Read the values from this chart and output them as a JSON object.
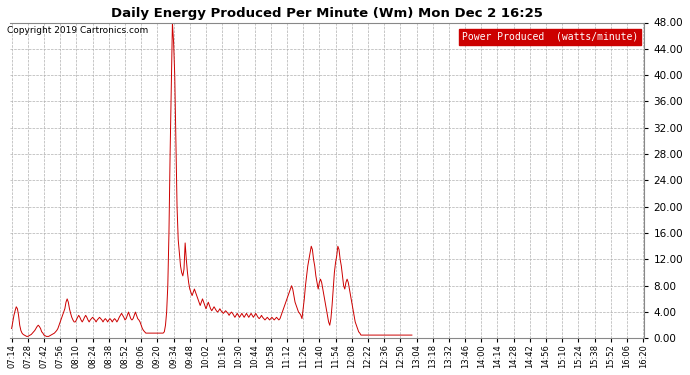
{
  "title": "Daily Energy Produced Per Minute (Wm) Mon Dec 2 16:25",
  "copyright": "Copyright 2019 Cartronics.com",
  "legend_label": "Power Produced  (watts/minute)",
  "legend_bg": "#cc0000",
  "legend_fg": "#ffffff",
  "line_color": "#cc0000",
  "bg_color": "#ffffff",
  "grid_color": "#bbbbbb",
  "ylim": [
    0.0,
    48.0
  ],
  "yticks": [
    0.0,
    4.0,
    8.0,
    12.0,
    16.0,
    20.0,
    24.0,
    28.0,
    32.0,
    36.0,
    40.0,
    44.0,
    48.0
  ],
  "xtick_labels": [
    "07:14",
    "07:28",
    "07:42",
    "07:56",
    "08:10",
    "08:24",
    "08:38",
    "08:52",
    "09:06",
    "09:20",
    "09:34",
    "09:48",
    "10:02",
    "10:16",
    "10:30",
    "10:44",
    "10:58",
    "11:12",
    "11:26",
    "11:40",
    "11:54",
    "12:08",
    "12:22",
    "12:36",
    "12:50",
    "13:04",
    "13:18",
    "13:32",
    "13:46",
    "14:00",
    "14:14",
    "14:28",
    "14:42",
    "14:56",
    "15:10",
    "15:24",
    "15:38",
    "15:52",
    "16:06",
    "16:20"
  ],
  "time_series": [
    [
      434,
      1.5
    ],
    [
      435,
      2.5
    ],
    [
      436,
      3.5
    ],
    [
      437,
      4.2
    ],
    [
      438,
      4.8
    ],
    [
      439,
      4.5
    ],
    [
      440,
      3.5
    ],
    [
      441,
      2.0
    ],
    [
      442,
      1.2
    ],
    [
      443,
      0.8
    ],
    [
      444,
      0.6
    ],
    [
      445,
      0.5
    ],
    [
      446,
      0.4
    ],
    [
      447,
      0.3
    ],
    [
      448,
      0.3
    ],
    [
      449,
      0.4
    ],
    [
      450,
      0.5
    ],
    [
      451,
      0.6
    ],
    [
      452,
      0.8
    ],
    [
      453,
      1.0
    ],
    [
      454,
      1.2
    ],
    [
      455,
      1.5
    ],
    [
      456,
      1.8
    ],
    [
      457,
      2.0
    ],
    [
      458,
      1.8
    ],
    [
      459,
      1.5
    ],
    [
      460,
      1.0
    ],
    [
      461,
      0.8
    ],
    [
      462,
      0.5
    ],
    [
      463,
      0.4
    ],
    [
      464,
      0.3
    ],
    [
      465,
      0.3
    ],
    [
      466,
      0.3
    ],
    [
      467,
      0.4
    ],
    [
      468,
      0.5
    ],
    [
      469,
      0.6
    ],
    [
      470,
      0.7
    ],
    [
      471,
      0.8
    ],
    [
      472,
      1.0
    ],
    [
      473,
      1.2
    ],
    [
      474,
      1.5
    ],
    [
      475,
      2.0
    ],
    [
      476,
      2.5
    ],
    [
      477,
      3.0
    ],
    [
      478,
      3.5
    ],
    [
      479,
      4.0
    ],
    [
      480,
      4.5
    ],
    [
      481,
      5.5
    ],
    [
      482,
      6.0
    ],
    [
      483,
      5.5
    ],
    [
      484,
      4.5
    ],
    [
      485,
      3.8
    ],
    [
      486,
      3.2
    ],
    [
      487,
      2.8
    ],
    [
      488,
      2.5
    ],
    [
      489,
      2.5
    ],
    [
      490,
      2.8
    ],
    [
      491,
      3.2
    ],
    [
      492,
      3.5
    ],
    [
      493,
      3.2
    ],
    [
      494,
      2.8
    ],
    [
      495,
      2.5
    ],
    [
      496,
      2.8
    ],
    [
      497,
      3.2
    ],
    [
      498,
      3.5
    ],
    [
      499,
      3.2
    ],
    [
      500,
      2.8
    ],
    [
      501,
      2.5
    ],
    [
      502,
      2.8
    ],
    [
      503,
      3.0
    ],
    [
      504,
      3.2
    ],
    [
      505,
      3.0
    ],
    [
      506,
      2.8
    ],
    [
      507,
      2.5
    ],
    [
      508,
      2.8
    ],
    [
      509,
      3.0
    ],
    [
      510,
      3.2
    ],
    [
      511,
      3.0
    ],
    [
      512,
      2.8
    ],
    [
      513,
      2.5
    ],
    [
      514,
      2.8
    ],
    [
      515,
      3.0
    ],
    [
      516,
      2.8
    ],
    [
      517,
      2.5
    ],
    [
      518,
      2.8
    ],
    [
      519,
      3.0
    ],
    [
      520,
      2.8
    ],
    [
      521,
      2.5
    ],
    [
      522,
      2.8
    ],
    [
      523,
      3.0
    ],
    [
      524,
      2.8
    ],
    [
      525,
      2.5
    ],
    [
      526,
      2.8
    ],
    [
      527,
      3.2
    ],
    [
      528,
      3.5
    ],
    [
      529,
      3.8
    ],
    [
      530,
      3.5
    ],
    [
      531,
      3.2
    ],
    [
      532,
      2.8
    ],
    [
      533,
      3.0
    ],
    [
      534,
      3.5
    ],
    [
      535,
      4.0
    ],
    [
      536,
      3.5
    ],
    [
      537,
      3.0
    ],
    [
      538,
      2.8
    ],
    [
      539,
      3.0
    ],
    [
      540,
      3.5
    ],
    [
      541,
      4.0
    ],
    [
      542,
      3.5
    ],
    [
      543,
      3.0
    ],
    [
      544,
      2.8
    ],
    [
      545,
      2.5
    ],
    [
      546,
      2.0
    ],
    [
      547,
      1.5
    ],
    [
      548,
      1.2
    ],
    [
      549,
      1.0
    ],
    [
      550,
      0.8
    ],
    [
      551,
      0.8
    ],
    [
      552,
      0.8
    ],
    [
      553,
      0.8
    ],
    [
      554,
      0.8
    ],
    [
      555,
      0.8
    ],
    [
      556,
      0.8
    ],
    [
      557,
      0.8
    ],
    [
      558,
      0.8
    ],
    [
      559,
      0.8
    ],
    [
      560,
      0.8
    ],
    [
      561,
      0.8
    ],
    [
      562,
      0.8
    ],
    [
      563,
      0.8
    ],
    [
      564,
      0.8
    ],
    [
      565,
      0.8
    ],
    [
      566,
      1.0
    ],
    [
      567,
      2.0
    ],
    [
      568,
      4.0
    ],
    [
      569,
      8.0
    ],
    [
      570,
      16.0
    ],
    [
      571,
      28.0
    ],
    [
      572,
      38.0
    ],
    [
      573,
      48.0
    ],
    [
      574,
      45.0
    ],
    [
      575,
      40.0
    ],
    [
      576,
      30.0
    ],
    [
      577,
      20.0
    ],
    [
      578,
      15.0
    ],
    [
      579,
      13.0
    ],
    [
      580,
      11.0
    ],
    [
      581,
      10.0
    ],
    [
      582,
      9.5
    ],
    [
      583,
      10.5
    ],
    [
      584,
      14.5
    ],
    [
      585,
      12.0
    ],
    [
      586,
      10.0
    ],
    [
      587,
      8.5
    ],
    [
      588,
      7.5
    ],
    [
      589,
      7.0
    ],
    [
      590,
      6.5
    ],
    [
      591,
      7.0
    ],
    [
      592,
      7.5
    ],
    [
      593,
      7.0
    ],
    [
      594,
      6.5
    ],
    [
      595,
      6.0
    ],
    [
      596,
      5.5
    ],
    [
      597,
      5.0
    ],
    [
      598,
      5.5
    ],
    [
      599,
      6.0
    ],
    [
      600,
      5.5
    ],
    [
      601,
      5.0
    ],
    [
      602,
      4.5
    ],
    [
      603,
      5.0
    ],
    [
      604,
      5.5
    ],
    [
      605,
      5.0
    ],
    [
      606,
      4.5
    ],
    [
      607,
      4.2
    ],
    [
      608,
      4.5
    ],
    [
      609,
      4.8
    ],
    [
      610,
      4.5
    ],
    [
      611,
      4.2
    ],
    [
      612,
      4.0
    ],
    [
      613,
      4.2
    ],
    [
      614,
      4.5
    ],
    [
      615,
      4.2
    ],
    [
      616,
      4.0
    ],
    [
      617,
      3.8
    ],
    [
      618,
      4.0
    ],
    [
      619,
      4.2
    ],
    [
      620,
      4.0
    ],
    [
      621,
      3.8
    ],
    [
      622,
      3.5
    ],
    [
      623,
      3.8
    ],
    [
      624,
      4.0
    ],
    [
      625,
      3.8
    ],
    [
      626,
      3.5
    ],
    [
      627,
      3.2
    ],
    [
      628,
      3.5
    ],
    [
      629,
      3.8
    ],
    [
      630,
      3.5
    ],
    [
      631,
      3.2
    ],
    [
      632,
      3.5
    ],
    [
      633,
      3.8
    ],
    [
      634,
      3.5
    ],
    [
      635,
      3.2
    ],
    [
      636,
      3.5
    ],
    [
      637,
      3.8
    ],
    [
      638,
      3.5
    ],
    [
      639,
      3.2
    ],
    [
      640,
      3.5
    ],
    [
      641,
      3.8
    ],
    [
      642,
      3.5
    ],
    [
      643,
      3.2
    ],
    [
      644,
      3.5
    ],
    [
      645,
      3.8
    ],
    [
      646,
      3.5
    ],
    [
      647,
      3.2
    ],
    [
      648,
      3.0
    ],
    [
      649,
      3.2
    ],
    [
      650,
      3.5
    ],
    [
      651,
      3.2
    ],
    [
      652,
      3.0
    ],
    [
      653,
      2.8
    ],
    [
      654,
      3.0
    ],
    [
      655,
      3.2
    ],
    [
      656,
      3.0
    ],
    [
      657,
      2.8
    ],
    [
      658,
      3.0
    ],
    [
      659,
      3.2
    ],
    [
      660,
      3.0
    ],
    [
      661,
      2.8
    ],
    [
      662,
      3.0
    ],
    [
      663,
      3.2
    ],
    [
      664,
      3.0
    ],
    [
      665,
      2.8
    ],
    [
      666,
      3.0
    ],
    [
      667,
      3.5
    ],
    [
      668,
      4.0
    ],
    [
      669,
      4.5
    ],
    [
      670,
      5.0
    ],
    [
      671,
      5.5
    ],
    [
      672,
      6.0
    ],
    [
      673,
      6.5
    ],
    [
      674,
      7.0
    ],
    [
      675,
      7.5
    ],
    [
      676,
      8.0
    ],
    [
      677,
      7.5
    ],
    [
      678,
      6.5
    ],
    [
      679,
      5.5
    ],
    [
      680,
      5.0
    ],
    [
      681,
      4.5
    ],
    [
      682,
      4.0
    ],
    [
      683,
      3.8
    ],
    [
      684,
      3.5
    ],
    [
      685,
      3.0
    ],
    [
      686,
      4.5
    ],
    [
      687,
      6.0
    ],
    [
      688,
      8.0
    ],
    [
      689,
      9.5
    ],
    [
      690,
      11.0
    ],
    [
      691,
      12.0
    ],
    [
      692,
      13.0
    ],
    [
      693,
      14.0
    ],
    [
      694,
      13.5
    ],
    [
      695,
      12.0
    ],
    [
      696,
      11.0
    ],
    [
      697,
      9.5
    ],
    [
      698,
      8.5
    ],
    [
      699,
      7.5
    ],
    [
      700,
      8.5
    ],
    [
      701,
      9.0
    ],
    [
      702,
      8.5
    ],
    [
      703,
      7.5
    ],
    [
      704,
      6.5
    ],
    [
      705,
      5.5
    ],
    [
      706,
      4.5
    ],
    [
      707,
      3.5
    ],
    [
      708,
      2.5
    ],
    [
      709,
      2.0
    ],
    [
      710,
      3.0
    ],
    [
      711,
      5.0
    ],
    [
      712,
      7.5
    ],
    [
      713,
      10.0
    ],
    [
      714,
      11.5
    ],
    [
      715,
      12.5
    ],
    [
      716,
      14.0
    ],
    [
      717,
      13.5
    ],
    [
      718,
      12.0
    ],
    [
      719,
      11.0
    ],
    [
      720,
      9.5
    ],
    [
      721,
      8.0
    ],
    [
      722,
      7.5
    ],
    [
      723,
      8.5
    ],
    [
      724,
      9.0
    ],
    [
      725,
      8.5
    ],
    [
      726,
      7.5
    ],
    [
      727,
      6.5
    ],
    [
      728,
      5.5
    ],
    [
      729,
      4.5
    ],
    [
      730,
      3.5
    ],
    [
      731,
      2.5
    ],
    [
      732,
      2.0
    ],
    [
      733,
      1.5
    ],
    [
      734,
      1.0
    ],
    [
      735,
      0.8
    ],
    [
      736,
      0.5
    ],
    [
      737,
      0.5
    ],
    [
      738,
      0.5
    ],
    [
      739,
      0.5
    ],
    [
      740,
      0.5
    ],
    [
      741,
      0.5
    ],
    [
      742,
      0.5
    ],
    [
      743,
      0.5
    ],
    [
      744,
      0.5
    ],
    [
      745,
      0.5
    ],
    [
      746,
      0.5
    ],
    [
      747,
      0.5
    ],
    [
      748,
      0.5
    ],
    [
      749,
      0.5
    ],
    [
      750,
      0.5
    ],
    [
      751,
      0.5
    ],
    [
      752,
      0.5
    ],
    [
      753,
      0.5
    ],
    [
      754,
      0.5
    ],
    [
      755,
      0.5
    ],
    [
      756,
      0.5
    ],
    [
      757,
      0.5
    ],
    [
      758,
      0.5
    ],
    [
      759,
      0.5
    ],
    [
      760,
      0.5
    ],
    [
      761,
      0.5
    ],
    [
      762,
      0.5
    ],
    [
      763,
      0.5
    ],
    [
      764,
      0.5
    ],
    [
      765,
      0.5
    ],
    [
      766,
      0.5
    ],
    [
      767,
      0.5
    ],
    [
      768,
      0.5
    ],
    [
      769,
      0.5
    ],
    [
      770,
      0.5
    ],
    [
      771,
      0.5
    ],
    [
      772,
      0.5
    ],
    [
      773,
      0.5
    ],
    [
      774,
      0.5
    ],
    [
      775,
      0.5
    ],
    [
      776,
      0.5
    ],
    [
      777,
      0.5
    ],
    [
      778,
      0.5
    ],
    [
      779,
      0.5
    ],
    [
      780,
      0.5
    ]
  ]
}
